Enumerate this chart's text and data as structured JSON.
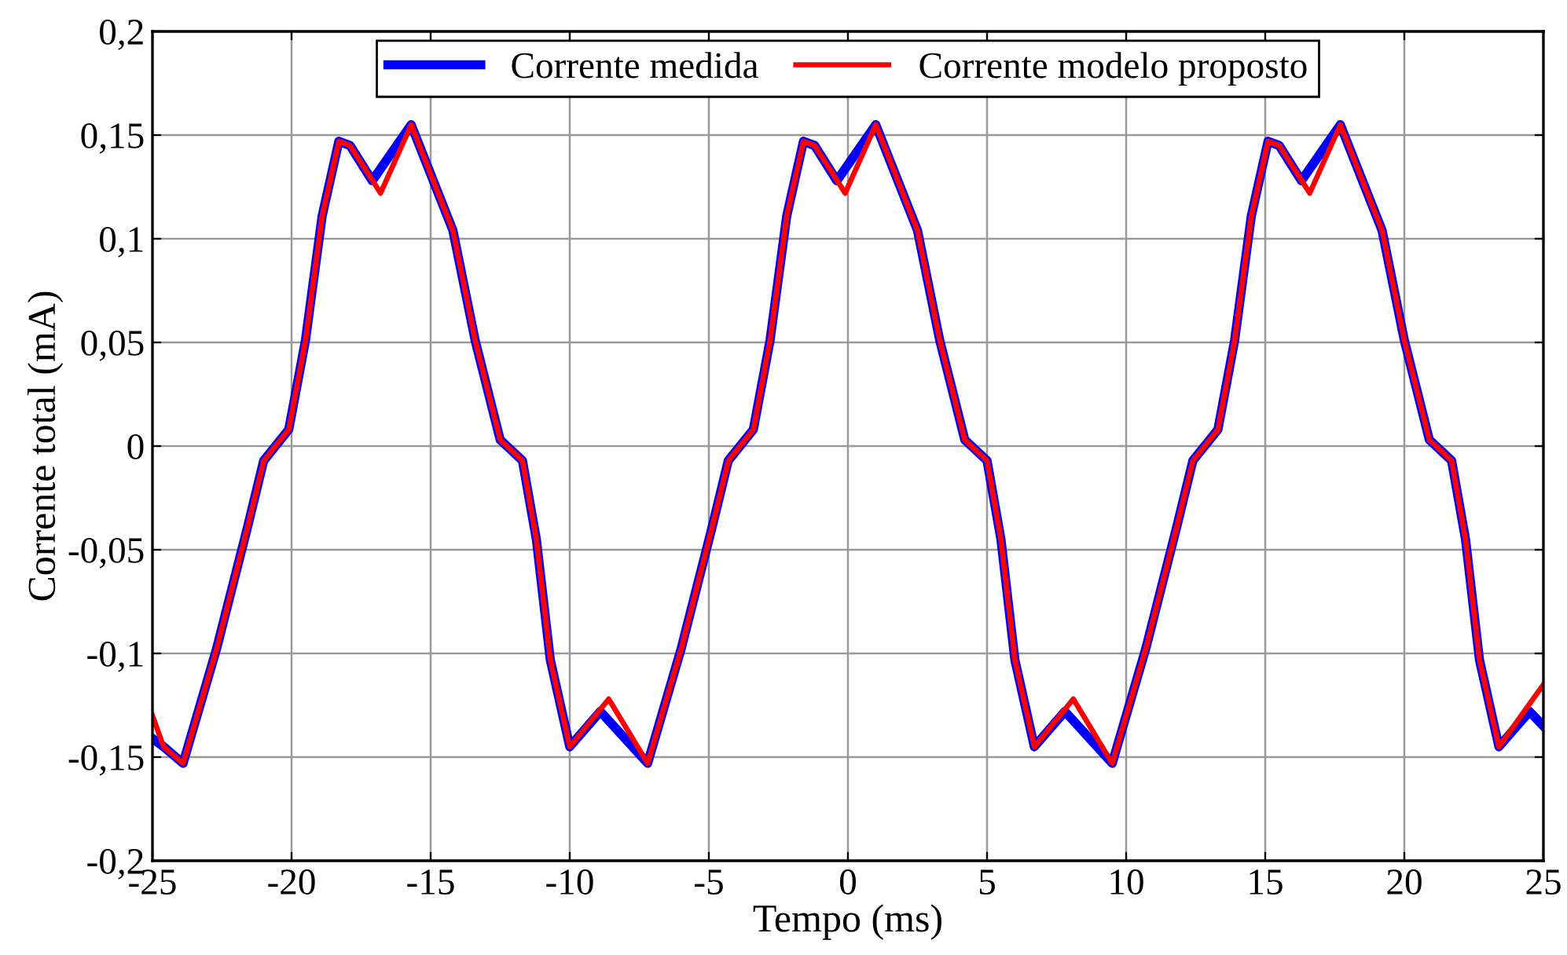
{
  "chart_data": {
    "type": "line",
    "xlabel": "Tempo (ms)",
    "ylabel": "Corrente total (mA)",
    "xlim": [
      -25,
      25
    ],
    "ylim": [
      -0.2,
      0.2
    ],
    "xticks": [
      -25,
      -20,
      -15,
      -10,
      -5,
      0,
      5,
      10,
      15,
      20,
      25
    ],
    "yticks": [
      {
        "value": -0.2,
        "label": "-0,2"
      },
      {
        "value": -0.15,
        "label": "-0,15"
      },
      {
        "value": -0.1,
        "label": "-0,1"
      },
      {
        "value": -0.05,
        "label": "-0,05"
      },
      {
        "value": 0,
        "label": "0"
      },
      {
        "value": 0.05,
        "label": "0,05"
      },
      {
        "value": 0.1,
        "label": "0,1"
      },
      {
        "value": 0.15,
        "label": "0,15"
      },
      {
        "value": 0.2,
        "label": "0,2"
      }
    ],
    "grid": true,
    "legend": "top",
    "line_style": "solid",
    "marker": "none",
    "series": [
      {
        "name": "Corrente medida",
        "color": "#0000ff",
        "x": [
          -25,
          -24.6,
          -23.9,
          -22.7,
          -21.6,
          -21.0,
          -20.1,
          -19.5,
          -18.9,
          -18.3,
          -17.9,
          -17.1,
          -15.7,
          -14.2,
          -13.4,
          -12.5,
          -11.7,
          -11.2,
          -10.7,
          -10.0,
          -8.9,
          -7.2,
          -6.0,
          -4.9,
          -4.3,
          -3.4,
          -2.8,
          -2.2,
          -1.6,
          -1.2,
          -0.4,
          1.0,
          2.5,
          3.3,
          4.2,
          5.0,
          5.5,
          6.0,
          6.7,
          7.8,
          9.5,
          10.7,
          11.8,
          12.4,
          13.3,
          13.9,
          14.5,
          15.1,
          15.5,
          16.3,
          17.7,
          19.2,
          20.0,
          20.9,
          21.7,
          22.2,
          22.7,
          23.4,
          24.5,
          25.0
        ],
        "values": [
          -0.141,
          -0.145,
          -0.153,
          -0.098,
          -0.04,
          -0.007,
          0.008,
          0.051,
          0.111,
          0.147,
          0.145,
          0.128,
          0.155,
          0.104,
          0.051,
          0.003,
          -0.007,
          -0.045,
          -0.103,
          -0.145,
          -0.128,
          -0.153,
          -0.098,
          -0.04,
          -0.007,
          0.008,
          0.051,
          0.111,
          0.147,
          0.145,
          0.128,
          0.155,
          0.104,
          0.051,
          0.003,
          -0.007,
          -0.045,
          -0.103,
          -0.145,
          -0.128,
          -0.153,
          -0.098,
          -0.04,
          -0.007,
          0.008,
          0.051,
          0.111,
          0.147,
          0.145,
          0.128,
          0.155,
          0.104,
          0.051,
          0.003,
          -0.007,
          -0.045,
          -0.103,
          -0.145,
          -0.128,
          -0.135
        ]
      },
      {
        "name": "Corrente modelo proposto",
        "color": "#ff0000",
        "x": [
          -25,
          -24.6,
          -23.9,
          -22.7,
          -21.6,
          -21.0,
          -20.1,
          -19.5,
          -18.9,
          -18.3,
          -17.9,
          -16.8,
          -15.7,
          -14.2,
          -13.4,
          -12.5,
          -11.7,
          -11.2,
          -10.7,
          -10.0,
          -8.6,
          -7.2,
          -6.0,
          -4.9,
          -4.3,
          -3.4,
          -2.8,
          -2.2,
          -1.6,
          -1.2,
          -0.1,
          1.0,
          2.5,
          3.3,
          4.2,
          5.0,
          5.5,
          6.0,
          6.7,
          8.1,
          9.5,
          10.7,
          11.8,
          12.4,
          13.3,
          13.9,
          14.5,
          15.1,
          15.5,
          16.6,
          17.7,
          19.2,
          20.0,
          20.9,
          21.7,
          22.2,
          22.7,
          23.4,
          24.2,
          25.0
        ],
        "values": [
          -0.13,
          -0.145,
          -0.153,
          -0.098,
          -0.04,
          -0.007,
          0.008,
          0.051,
          0.111,
          0.147,
          0.145,
          0.122,
          0.155,
          0.104,
          0.051,
          0.003,
          -0.007,
          -0.045,
          -0.103,
          -0.145,
          -0.122,
          -0.153,
          -0.098,
          -0.04,
          -0.007,
          0.008,
          0.051,
          0.111,
          0.147,
          0.145,
          0.122,
          0.155,
          0.104,
          0.051,
          0.003,
          -0.007,
          -0.045,
          -0.103,
          -0.145,
          -0.122,
          -0.153,
          -0.098,
          -0.04,
          -0.007,
          0.008,
          0.051,
          0.111,
          0.147,
          0.145,
          0.122,
          0.155,
          0.104,
          0.051,
          0.003,
          -0.007,
          -0.045,
          -0.103,
          -0.145,
          -0.13,
          -0.115
        ]
      }
    ]
  }
}
